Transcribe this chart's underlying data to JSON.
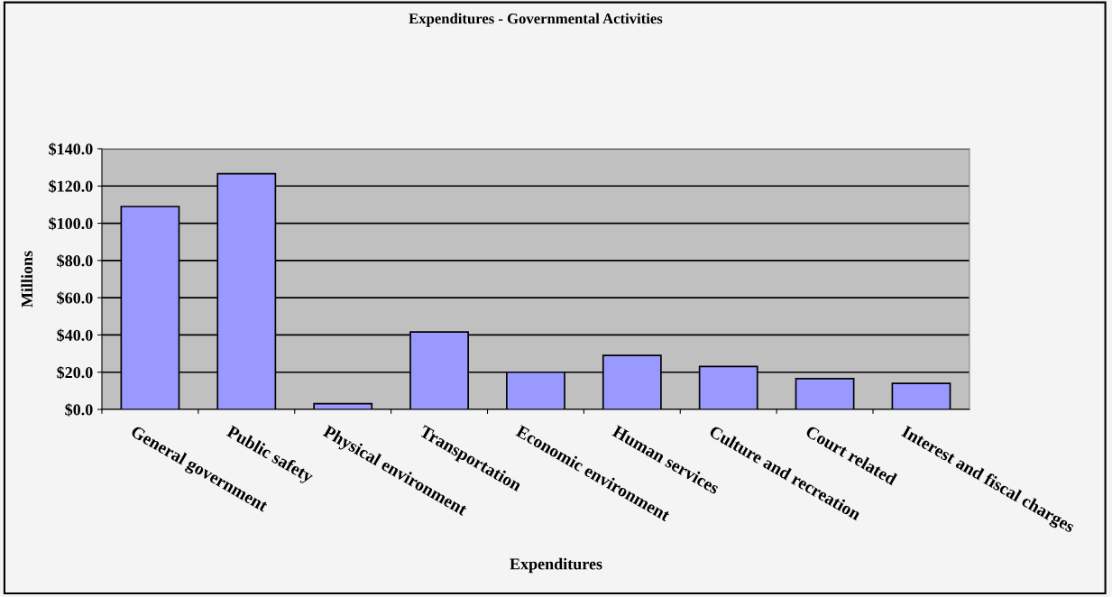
{
  "chart_data": {
    "type": "bar",
    "title": "Expenditures - Governmental Activities",
    "xlabel": "Expenditures",
    "ylabel": "Millions",
    "categories": [
      "General government",
      "Public safety",
      "Physical environment",
      "Transportation",
      "Economic environment",
      "Human services",
      "Culture and recreation",
      "Court related",
      "Interest and fiscal charges"
    ],
    "values": [
      109,
      126.6,
      3.1,
      41.6,
      20,
      29,
      23.1,
      16.5,
      14
    ],
    "color": "#9999ff",
    "ylim": [
      0,
      140
    ],
    "yticks": [
      {
        "value": 0,
        "label": "$0.0"
      },
      {
        "value": 20,
        "label": "$20.0"
      },
      {
        "value": 40,
        "label": "$40.0"
      },
      {
        "value": 60,
        "label": "$60.0"
      },
      {
        "value": 80,
        "label": "$80.0"
      },
      {
        "value": 100,
        "label": "$100.0"
      },
      {
        "value": 120,
        "label": "$120.0"
      },
      {
        "value": 140,
        "label": "$140.0"
      }
    ],
    "grid": "y"
  }
}
